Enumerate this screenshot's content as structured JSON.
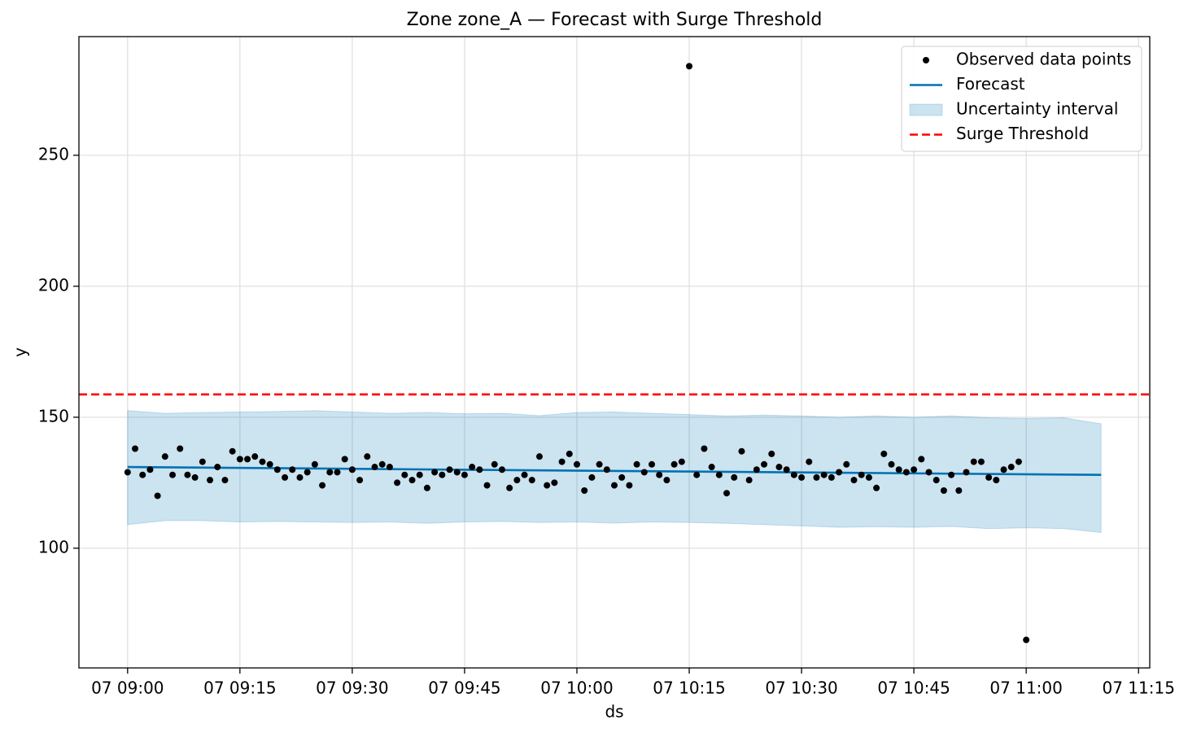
{
  "chart_data": {
    "type": "line",
    "title": "Zone zone_A — Forecast with Surge Threshold",
    "x_label": "ds",
    "y_label": "y",
    "xlim": [
      -6.5,
      136.5
    ],
    "xticks": [
      {
        "value": 0,
        "label": "07 09:00"
      },
      {
        "value": 15,
        "label": "07 09:15"
      },
      {
        "value": 30,
        "label": "07 09:30"
      },
      {
        "value": 45,
        "label": "07 09:45"
      },
      {
        "value": 60,
        "label": "07 10:00"
      },
      {
        "value": 75,
        "label": "07 10:15"
      },
      {
        "value": 90,
        "label": "07 10:30"
      },
      {
        "value": 105,
        "label": "07 10:45"
      },
      {
        "value": 120,
        "label": "07 11:00"
      },
      {
        "value": 135,
        "label": "07 11:15"
      }
    ],
    "ylim": [
      54.3,
      295.3
    ],
    "yticks": [
      100,
      150,
      200,
      250
    ],
    "grid": true,
    "legend": "upper right",
    "series": [
      {
        "name": "Observed data points",
        "kind": "scatter",
        "color": "#000000",
        "x": [
          0,
          1,
          2,
          3,
          4,
          5,
          6,
          7,
          8,
          9,
          10,
          11,
          12,
          13,
          14,
          15,
          16,
          17,
          18,
          19,
          20,
          21,
          22,
          23,
          24,
          25,
          26,
          27,
          28,
          29,
          30,
          31,
          32,
          33,
          34,
          35,
          36,
          37,
          38,
          39,
          40,
          41,
          42,
          43,
          44,
          45,
          46,
          47,
          48,
          49,
          50,
          51,
          52,
          53,
          54,
          55,
          56,
          57,
          58,
          59,
          60,
          61,
          62,
          63,
          64,
          65,
          66,
          67,
          68,
          69,
          70,
          71,
          72,
          73,
          74,
          75,
          76,
          77,
          78,
          79,
          80,
          81,
          82,
          83,
          84,
          85,
          86,
          87,
          88,
          89,
          90,
          91,
          92,
          93,
          94,
          95,
          96,
          97,
          98,
          99,
          100,
          101,
          102,
          103,
          104,
          105,
          106,
          107,
          108,
          109,
          110,
          111,
          112,
          113,
          114,
          115,
          116,
          117,
          118,
          119,
          120
        ],
        "values": [
          129,
          138,
          128,
          130,
          120,
          135,
          128,
          138,
          128,
          127,
          133,
          126,
          131,
          126,
          137,
          134,
          134,
          135,
          133,
          132,
          130,
          127,
          130,
          127,
          129,
          132,
          124,
          129,
          129,
          134,
          130,
          126,
          135,
          131,
          132,
          131,
          125,
          128,
          126,
          128,
          123,
          129,
          128,
          130,
          129,
          128,
          131,
          130,
          124,
          132,
          130,
          123,
          126,
          128,
          126,
          135,
          124,
          125,
          133,
          136,
          132,
          122,
          127,
          132,
          130,
          124,
          127,
          124,
          132,
          129,
          132,
          128,
          126,
          132,
          133,
          284,
          128,
          138,
          131,
          128,
          121,
          127,
          137,
          126,
          130,
          132,
          136,
          131,
          130,
          128,
          127,
          133,
          127,
          128,
          127,
          129,
          132,
          126,
          128,
          127,
          123,
          136,
          132,
          130,
          129,
          130,
          134,
          129,
          126,
          122,
          128,
          122,
          129,
          133,
          133,
          127,
          126,
          130,
          131,
          133,
          65
        ]
      },
      {
        "name": "Forecast",
        "kind": "line",
        "color": "#0072b2",
        "x": [
          0,
          130
        ],
        "values": [
          131,
          128
        ]
      },
      {
        "name": "Uncertainty interval",
        "kind": "band",
        "color": "#0072b2",
        "x": [
          0,
          5,
          10,
          15,
          20,
          25,
          30,
          35,
          40,
          45,
          50,
          55,
          60,
          65,
          70,
          75,
          80,
          85,
          90,
          95,
          100,
          105,
          110,
          115,
          120,
          125,
          130
        ],
        "upper": [
          152.5,
          151.5,
          151.8,
          152,
          152.2,
          152.5,
          152,
          151.5,
          151.8,
          151.3,
          151.5,
          150.6,
          151.8,
          152,
          151.5,
          151,
          150.5,
          150.8,
          150.5,
          150,
          150.5,
          150,
          150.5,
          149.8,
          149.5,
          149.8,
          147.5
        ],
        "lower": [
          109,
          110.5,
          110.5,
          110,
          110.2,
          110,
          109.8,
          110,
          109.5,
          110,
          110.2,
          109.8,
          110,
          109.6,
          110,
          109.8,
          109.5,
          109,
          108.5,
          108,
          108.2,
          108,
          108.3,
          107.5,
          107.8,
          107.5,
          106
        ]
      },
      {
        "name": "Surge Threshold",
        "kind": "hline",
        "color": "#ff0000",
        "value": 158.7
      }
    ]
  }
}
